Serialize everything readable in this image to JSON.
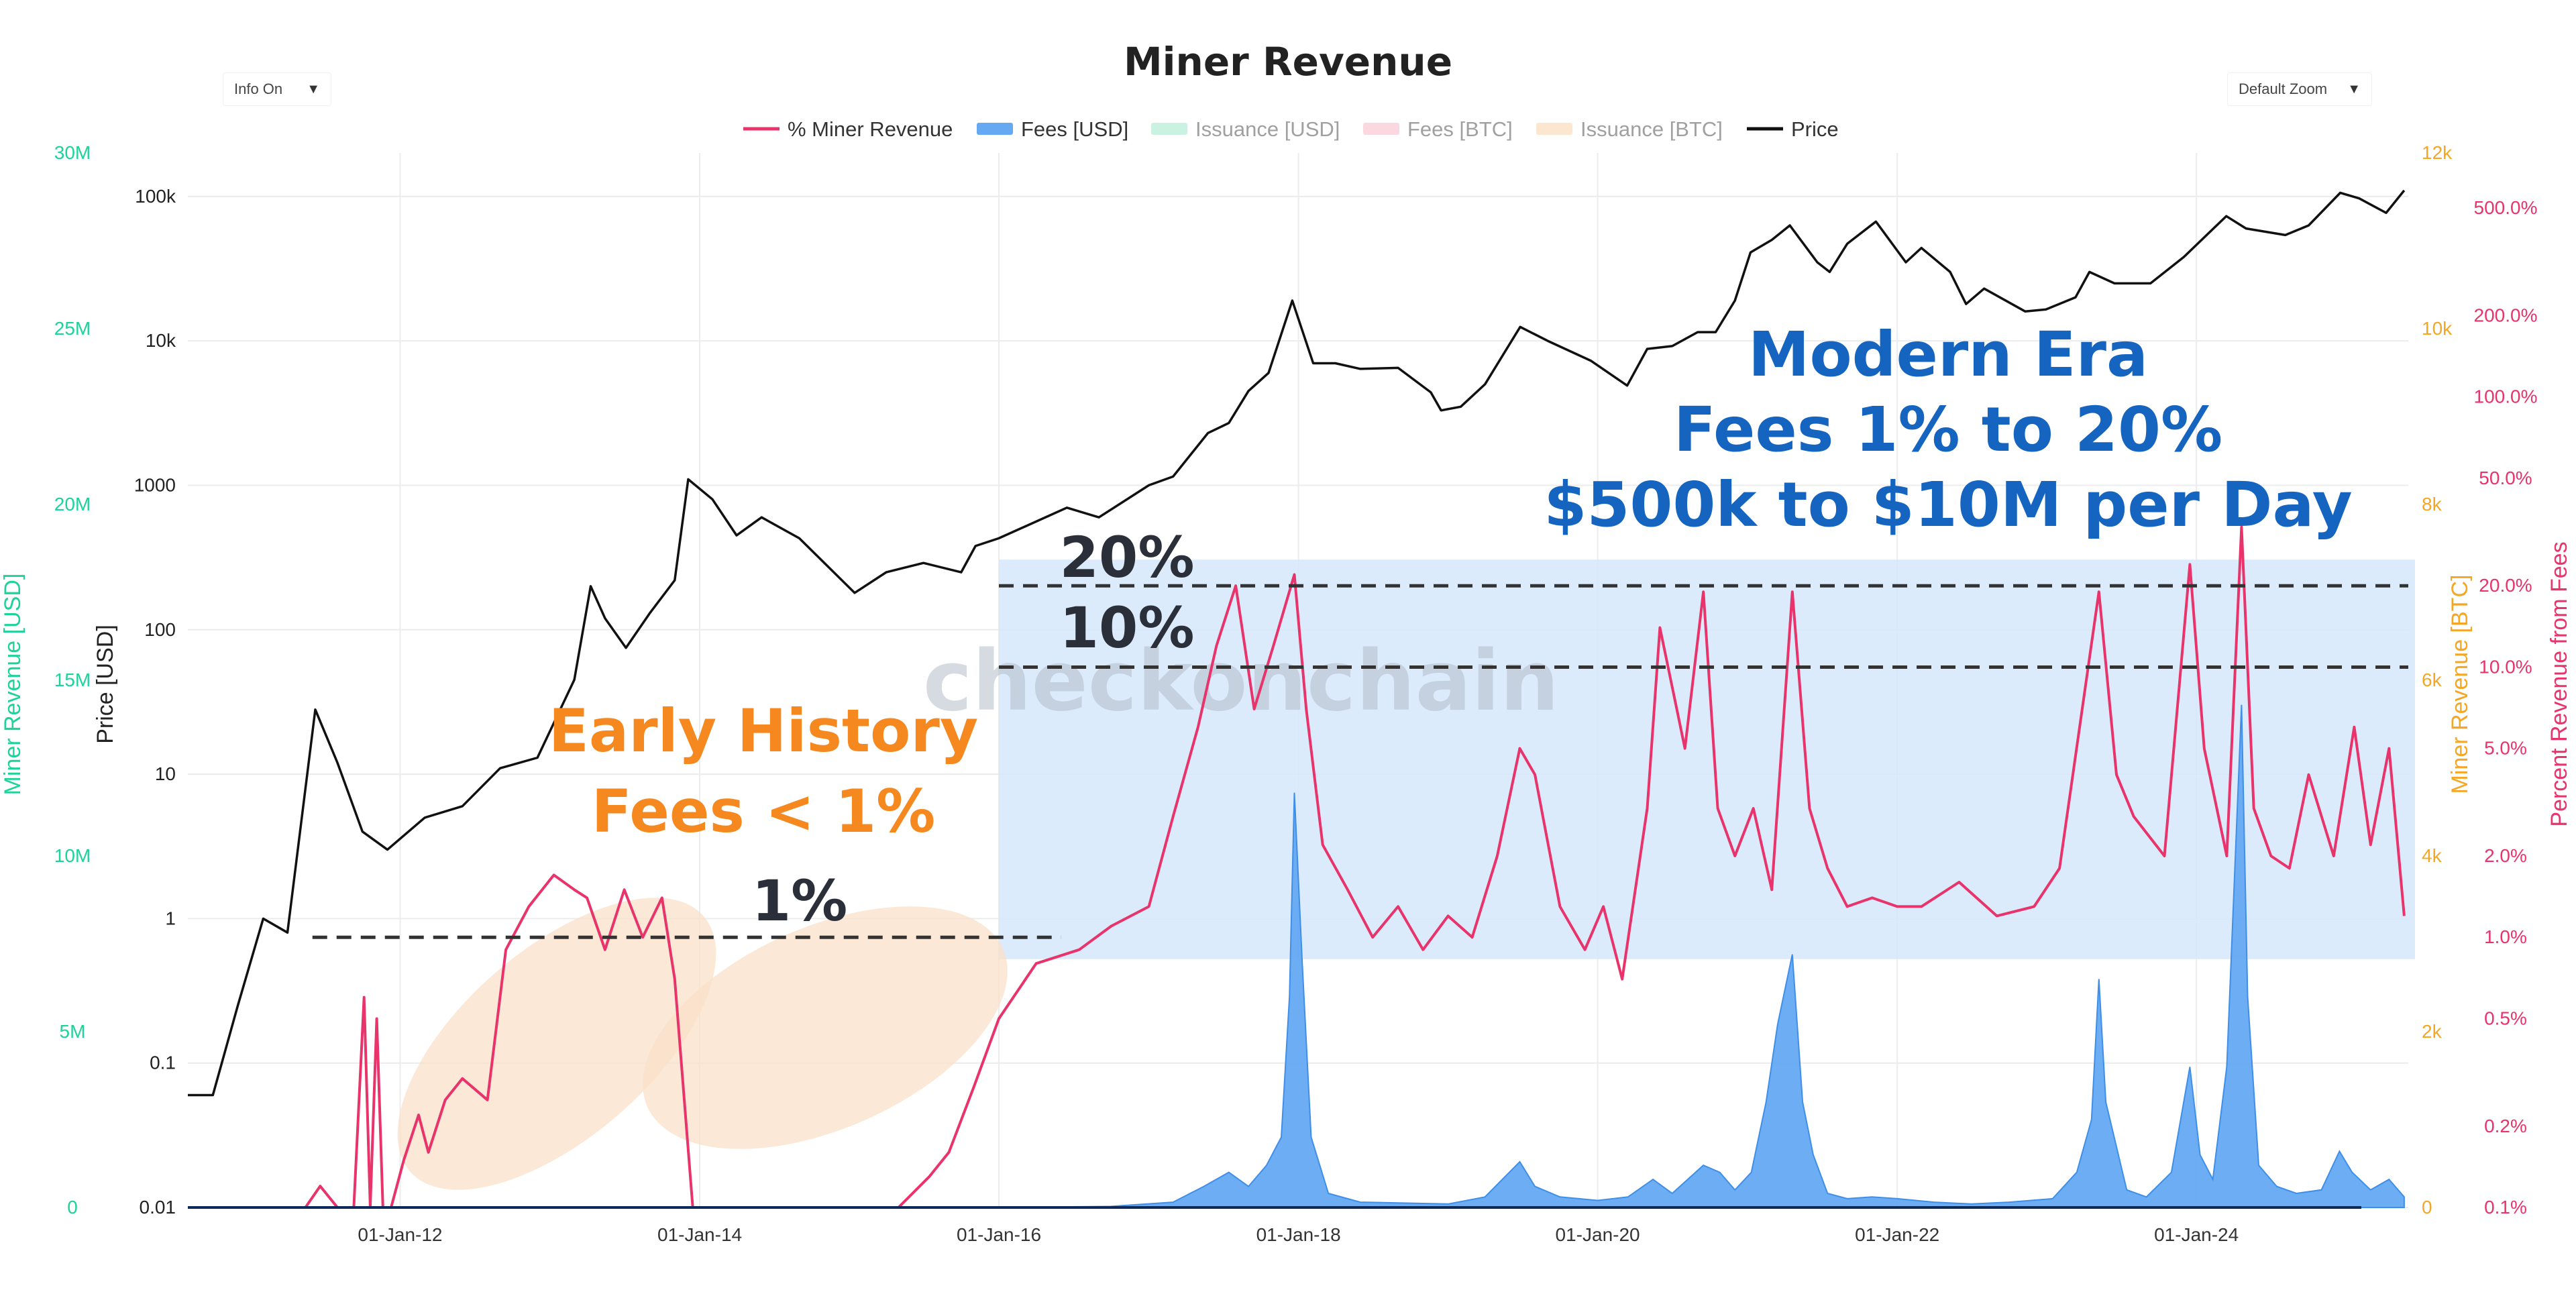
{
  "header": {
    "title": "Miner Revenue",
    "info_dropdown": "Info On",
    "zoom_dropdown": "Default Zoom",
    "caret": "▼"
  },
  "legend": [
    {
      "label": "% Miner Revenue",
      "color": "#e8336b",
      "active": true,
      "shape": "line"
    },
    {
      "label": "Fees [USD]",
      "color": "#64a9f2",
      "active": true,
      "shape": "bar"
    },
    {
      "label": "Issuance [USD]",
      "color": "#9fe8cb",
      "active": false,
      "shape": "bar"
    },
    {
      "label": "Fees [BTC]",
      "color": "#f7b8c8",
      "active": false,
      "shape": "bar"
    },
    {
      "label": "Issuance [BTC]",
      "color": "#fad2a8",
      "active": false,
      "shape": "bar"
    },
    {
      "label": "Price",
      "color": "#111111",
      "active": true,
      "shape": "line"
    }
  ],
  "watermark": "checkonchain",
  "annotations": {
    "early_history": [
      "Early History",
      "Fees < 1%"
    ],
    "modern_era": [
      "Modern Era",
      "Fees 1% to 20%",
      "$500k to $10M per Day"
    ],
    "line_1": "1%",
    "line_10": "10%",
    "line_20": "20%"
  },
  "colors": {
    "fees_axis": "#1ed39a",
    "btc_axis": "#f5a623",
    "pct_axis": "#e8336b",
    "price": "#111111",
    "fees_fill": "#64a9f2",
    "highlight": "#d6e8fb",
    "early_ellipse": "#fae0c8",
    "orange_text": "#f5891f",
    "blue_text": "#1565c0",
    "dark_text": "#2b2f3a"
  },
  "chart_data": {
    "type": "line",
    "x_ticks": [
      "01-Jan-12",
      "01-Jan-14",
      "01-Jan-16",
      "01-Jan-18",
      "01-Jan-20",
      "01-Jan-22",
      "01-Jan-24"
    ],
    "x_range": [
      "2010-08-01",
      "2025-06-01"
    ],
    "axes": {
      "fees_usd": {
        "label": "Miner Revenue [USD]",
        "range": [
          0,
          30000000
        ],
        "scale": "linear",
        "ticks": [
          "0",
          "5M",
          "10M",
          "15M",
          "20M",
          "25M",
          "30M"
        ],
        "tick_values": [
          0,
          5000000,
          10000000,
          15000000,
          20000000,
          25000000,
          30000000
        ]
      },
      "price": {
        "label": "Price [USD]",
        "range": [
          0.01,
          200000
        ],
        "scale": "log",
        "ticks": [
          "0.01",
          "0.1",
          "1",
          "10",
          "100",
          "1000",
          "10k",
          "100k"
        ],
        "tick_values": [
          0.01,
          0.1,
          1,
          10,
          100,
          1000,
          10000,
          100000
        ]
      },
      "btc": {
        "label": "Miner Revenue [BTC]",
        "range": [
          0,
          12000
        ],
        "scale": "linear",
        "ticks": [
          "0",
          "2k",
          "4k",
          "6k",
          "8k",
          "10k",
          "12k"
        ],
        "tick_values": [
          0,
          2000,
          4000,
          6000,
          8000,
          10000,
          12000
        ]
      },
      "pct": {
        "label": "Percent Revenue from Fees",
        "range": [
          0.1,
          800
        ],
        "scale": "log",
        "ticks": [
          "0.1%",
          "0.2%",
          "0.5%",
          "1.0%",
          "2.0%",
          "5.0%",
          "10.0%",
          "20.0%",
          "50.0%",
          "100.0%",
          "200.0%",
          "500.0%"
        ],
        "tick_values": [
          0.1,
          0.2,
          0.5,
          1,
          2,
          5,
          10,
          20,
          50,
          100,
          200,
          500
        ]
      }
    },
    "reference_lines_pct": [
      1,
      10,
      20
    ],
    "series": [
      {
        "name": "Price",
        "axis": "price",
        "color": "#111111",
        "x": [
          "2010-08-01",
          "2010-10-01",
          "2010-12-01",
          "2011-02-01",
          "2011-04-01",
          "2011-06-08",
          "2011-08-01",
          "2011-10-01",
          "2011-12-01",
          "2012-03-01",
          "2012-06-01",
          "2012-09-01",
          "2012-12-01",
          "2013-03-01",
          "2013-04-10",
          "2013-05-15",
          "2013-07-05",
          "2013-09-01",
          "2013-11-01",
          "2013-12-04",
          "2014-02-01",
          "2014-04-01",
          "2014-06-01",
          "2014-09-01",
          "2015-01-14",
          "2015-04-01",
          "2015-07-01",
          "2015-10-01",
          "2015-11-05",
          "2016-01-01",
          "2016-06-15",
          "2016-09-01",
          "2017-01-01",
          "2017-03-01",
          "2017-05-25",
          "2017-07-15",
          "2017-09-01",
          "2017-10-20",
          "2017-12-17",
          "2018-02-06",
          "2018-04-01",
          "2018-06-01",
          "2018-09-01",
          "2018-11-20",
          "2018-12-15",
          "2019-02-01",
          "2019-04-01",
          "2019-06-26",
          "2019-09-01",
          "2019-12-15",
          "2020-03-13",
          "2020-05-01",
          "2020-07-01",
          "2020-09-01",
          "2020-10-15",
          "2020-12-01",
          "2021-01-08",
          "2021-03-01",
          "2021-04-14",
          "2021-06-20",
          "2021-07-20",
          "2021-09-01",
          "2021-11-10",
          "2022-01-22",
          "2022-03-01",
          "2022-05-10",
          "2022-06-18",
          "2022-08-01",
          "2022-11-09",
          "2022-12-30",
          "2023-03-12",
          "2023-04-15",
          "2023-06-15",
          "2023-09-11",
          "2023-12-01",
          "2024-03-14",
          "2024-05-01",
          "2024-08-05",
          "2024-10-01",
          "2024-12-17",
          "2025-02-01",
          "2025-04-08",
          "2025-05-22"
        ],
        "values": [
          0.06,
          0.06,
          0.25,
          1,
          0.8,
          28,
          12,
          4,
          3,
          5,
          6,
          11,
          13,
          45,
          200,
          120,
          75,
          130,
          220,
          1100,
          800,
          450,
          600,
          430,
          180,
          250,
          290,
          250,
          380,
          430,
          700,
          600,
          1000,
          1150,
          2300,
          2700,
          4500,
          6000,
          19000,
          7000,
          7000,
          6400,
          6500,
          4400,
          3300,
          3500,
          5000,
          12500,
          10000,
          7300,
          4900,
          8800,
          9200,
          11500,
          11500,
          19000,
          41000,
          50000,
          63000,
          35000,
          30000,
          47000,
          67000,
          35000,
          44000,
          30000,
          18000,
          23000,
          16000,
          16500,
          20000,
          30000,
          25000,
          25000,
          38000,
          73000,
          60000,
          54000,
          63000,
          106000,
          97000,
          77000,
          110000
        ]
      },
      {
        "name": "% Miner Revenue",
        "axis": "pct",
        "color": "#e8336b",
        "x": [
          "2011-04-20",
          "2011-05-15",
          "2011-06-20",
          "2011-08-01",
          "2011-09-10",
          "2011-10-05",
          "2011-10-20",
          "2011-11-05",
          "2011-11-20",
          "2011-12-10",
          "2012-01-10",
          "2012-02-15",
          "2012-03-10",
          "2012-04-20",
          "2012-06-01",
          "2012-08-01",
          "2012-09-15",
          "2012-11-10",
          "2013-01-10",
          "2013-03-01",
          "2013-04-01",
          "2013-05-15",
          "2013-07-01",
          "2013-08-15",
          "2013-10-01",
          "2013-11-01",
          "2013-12-15",
          "2014-02-01",
          "2014-04-01",
          "2014-07-01",
          "2014-09-01",
          "2014-12-01",
          "2015-02-01",
          "2015-05-01",
          "2015-07-15",
          "2015-09-01",
          "2015-11-01",
          "2016-01-01",
          "2016-04-01",
          "2016-07-15",
          "2016-10-01",
          "2017-01-01",
          "2017-03-01",
          "2017-05-01",
          "2017-06-15",
          "2017-08-01",
          "2017-09-15",
          "2017-11-01",
          "2017-12-22",
          "2018-01-20",
          "2018-03-01",
          "2018-05-01",
          "2018-07-01",
          "2018-09-01",
          "2018-11-01",
          "2019-01-01",
          "2019-03-01",
          "2019-05-01",
          "2019-06-25",
          "2019-08-01",
          "2019-10-01",
          "2019-12-01",
          "2020-01-15",
          "2020-03-01",
          "2020-05-01",
          "2020-06-01",
          "2020-08-01",
          "2020-09-15",
          "2020-10-20",
          "2020-12-01",
          "2021-01-15",
          "2021-03-01",
          "2021-04-20",
          "2021-06-01",
          "2021-07-15",
          "2021-09-01",
          "2021-11-01",
          "2022-01-01",
          "2022-03-01",
          "2022-06-01",
          "2022-09-01",
          "2022-12-01",
          "2023-02-01",
          "2023-05-08",
          "2023-06-20",
          "2023-08-01",
          "2023-10-15",
          "2023-12-16",
          "2024-01-20",
          "2024-03-15",
          "2024-04-20",
          "2024-05-20",
          "2024-07-01",
          "2024-08-15",
          "2024-10-01",
          "2024-12-01",
          "2025-01-20",
          "2025-03-01",
          "2025-04-15",
          "2025-05-22"
        ],
        "values": [
          0.05,
          0.08,
          0.12,
          0.05,
          0.02,
          0.6,
          0.05,
          0.5,
          0.02,
          0.03,
          0.15,
          0.22,
          0.16,
          0.25,
          0.3,
          0.25,
          0.9,
          1.3,
          1.7,
          1.5,
          1.4,
          0.9,
          1.5,
          1.0,
          1.4,
          0.7,
          0.09,
          0.08,
          0.075,
          0.07,
          0.08,
          0.07,
          0.1,
          0.09,
          0.13,
          0.16,
          0.28,
          0.5,
          0.8,
          0.9,
          1.1,
          1.3,
          2.8,
          6,
          12,
          20,
          7,
          12,
          22,
          7,
          2.2,
          1.5,
          1,
          1.3,
          0.9,
          1.2,
          1.0,
          2.0,
          5,
          4,
          1.3,
          0.9,
          1.3,
          0.7,
          3,
          14,
          5,
          19,
          3,
          2.0,
          3,
          1.5,
          19,
          3,
          1.8,
          1.3,
          1.4,
          1.3,
          1.3,
          1.6,
          1.2,
          1.3,
          1.8,
          19,
          4,
          2.8,
          2.0,
          24,
          5,
          2,
          33,
          3,
          2.0,
          1.8,
          4,
          2,
          6,
          2.2,
          5,
          1.2
        ]
      },
      {
        "name": "Fees [USD]",
        "axis": "fees_usd",
        "color": "#64a9f2",
        "x": [
          "2010-08-01",
          "2016-01-01",
          "2016-10-01",
          "2017-03-01",
          "2017-05-15",
          "2017-07-15",
          "2017-09-01",
          "2017-10-15",
          "2017-11-20",
          "2017-12-10",
          "2017-12-22",
          "2018-01-10",
          "2018-02-01",
          "2018-03-15",
          "2018-06-01",
          "2019-01-01",
          "2019-04-01",
          "2019-06-25",
          "2019-08-01",
          "2019-10-01",
          "2020-01-01",
          "2020-03-15",
          "2020-05-15",
          "2020-07-01",
          "2020-09-15",
          "2020-10-25",
          "2020-12-01",
          "2021-01-10",
          "2021-02-15",
          "2021-03-15",
          "2021-04-20",
          "2021-05-15",
          "2021-06-10",
          "2021-07-15",
          "2021-09-01",
          "2021-11-01",
          "2022-01-01",
          "2022-04-01",
          "2022-07-01",
          "2022-10-01",
          "2023-01-15",
          "2023-03-15",
          "2023-04-20",
          "2023-05-08",
          "2023-05-25",
          "2023-07-15",
          "2023-09-01",
          "2023-11-01",
          "2023-12-16",
          "2024-01-10",
          "2024-02-10",
          "2024-03-15",
          "2024-04-20",
          "2024-05-05",
          "2024-06-01",
          "2024-07-15",
          "2024-09-01",
          "2024-11-01",
          "2024-12-15",
          "2025-01-15",
          "2025-03-01",
          "2025-04-15",
          "2025-05-22"
        ],
        "values": [
          0,
          0,
          30000,
          150000,
          600000,
          1000000,
          600000,
          1200000,
          2000000,
          6000000,
          11800000,
          7000000,
          2000000,
          400000,
          150000,
          100000,
          300000,
          1300000,
          600000,
          300000,
          200000,
          300000,
          800000,
          400000,
          1200000,
          1000000,
          500000,
          1000000,
          3000000,
          5200000,
          7200000,
          3000000,
          1500000,
          400000,
          250000,
          300000,
          250000,
          150000,
          100000,
          150000,
          250000,
          1000000,
          2500000,
          6500000,
          3000000,
          500000,
          300000,
          1000000,
          4000000,
          1500000,
          800000,
          4000000,
          14300000,
          6000000,
          1200000,
          600000,
          400000,
          500000,
          1600000,
          1000000,
          500000,
          800000,
          300000
        ]
      }
    ]
  }
}
